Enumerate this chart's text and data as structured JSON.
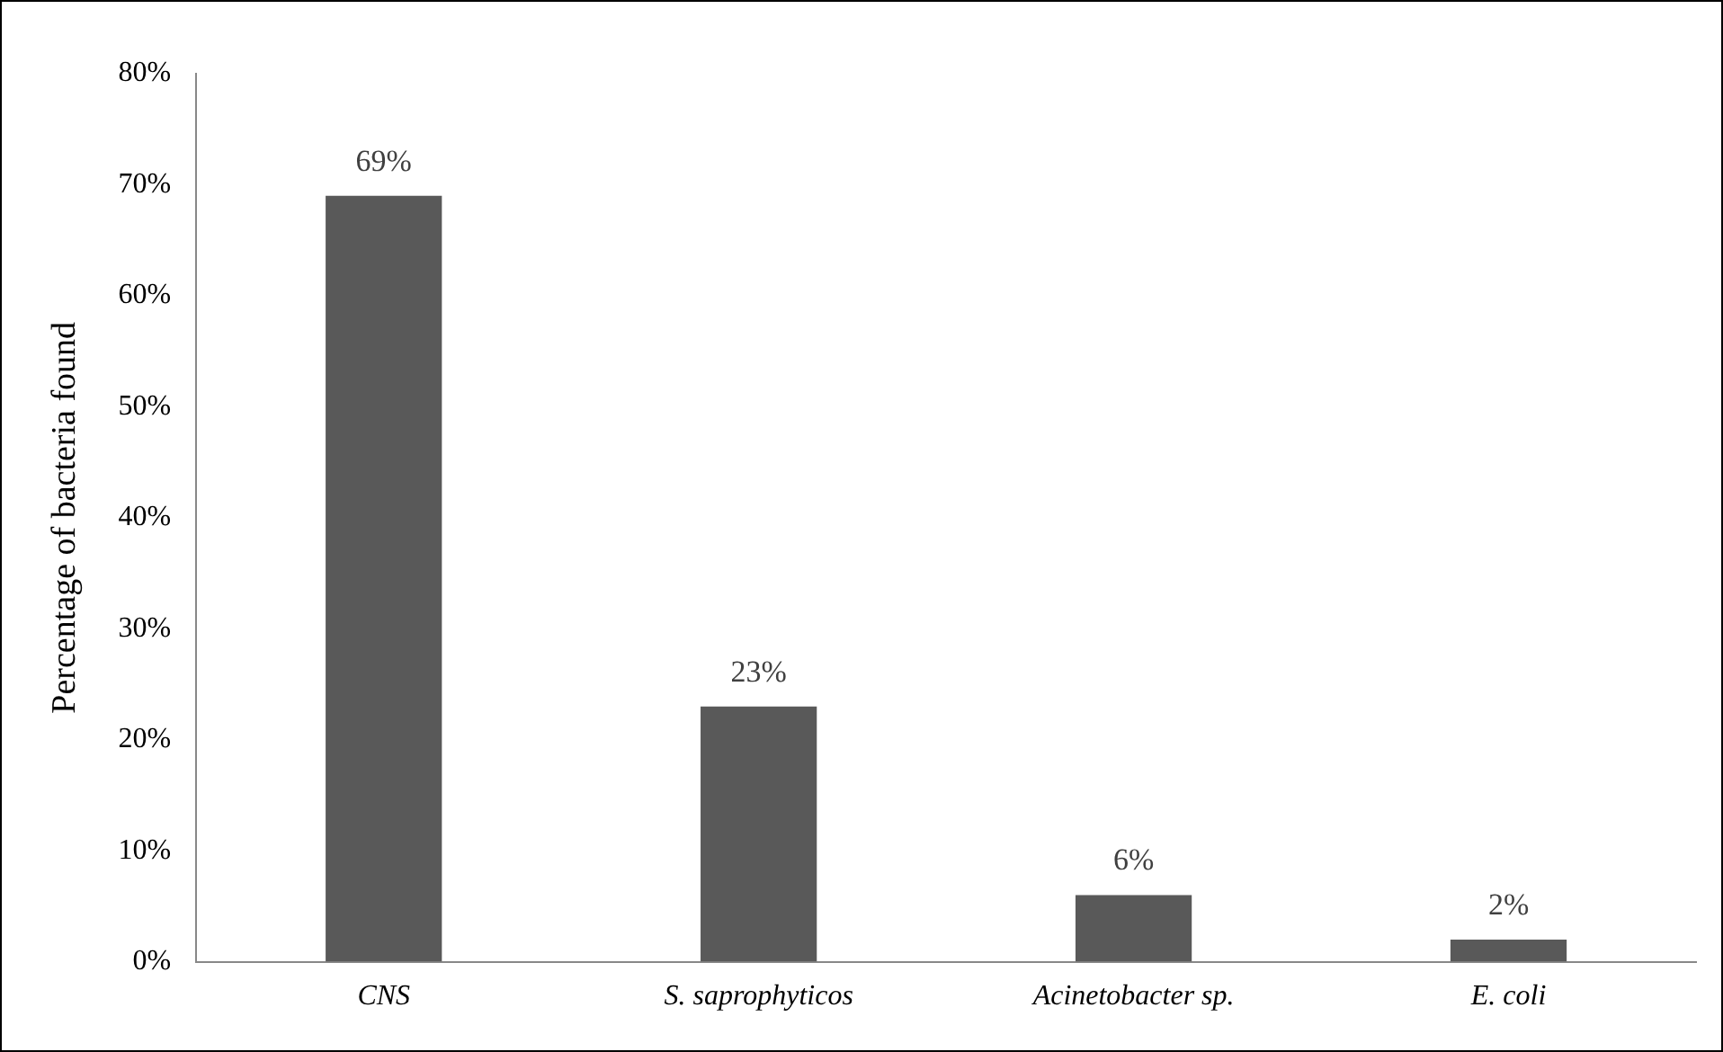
{
  "chart_data": {
    "type": "bar",
    "ylabel": "Percentage of bacteria found",
    "categories": [
      "CNS",
      "S. saprophyticos",
      "Acinetobacter sp.",
      "E. coli"
    ],
    "values": [
      69,
      23,
      6,
      2
    ],
    "color": "#595959",
    "value_labels": [
      "69%",
      "23%",
      "6%",
      "2%"
    ],
    "ylim": [
      0,
      80
    ],
    "yticks": [
      {
        "value": 0,
        "label": "0%"
      },
      {
        "value": 10,
        "label": "10%"
      },
      {
        "value": 20,
        "label": "20%"
      },
      {
        "value": 30,
        "label": "30%"
      },
      {
        "value": 40,
        "label": "40%"
      },
      {
        "value": 50,
        "label": "50%"
      },
      {
        "value": 60,
        "label": "60%"
      },
      {
        "value": 70,
        "label": "70%"
      },
      {
        "value": 80,
        "label": "80%"
      }
    ],
    "grid": false,
    "legend": false
  }
}
